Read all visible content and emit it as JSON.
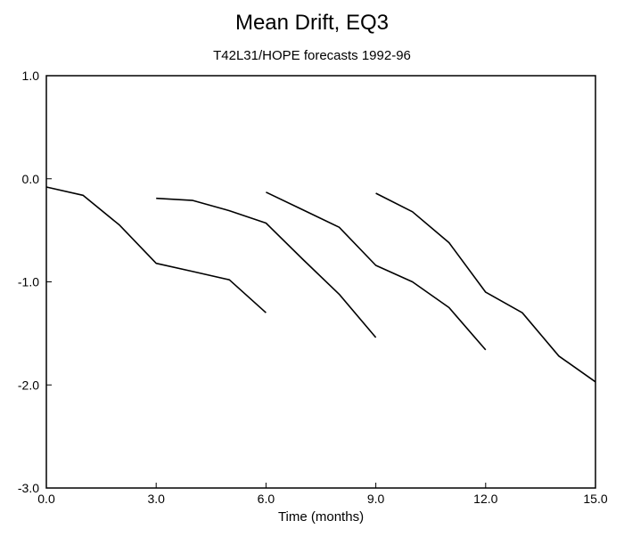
{
  "chart_data": {
    "type": "line",
    "title": "Mean Drift, EQ3",
    "subtitle": "T42L31/HOPE forecasts 1992-96",
    "xlabel": "Time (months)",
    "ylabel": "",
    "xlim": [
      0,
      15
    ],
    "ylim": [
      -3,
      1
    ],
    "xticks": [
      0,
      3,
      6,
      9,
      12,
      15
    ],
    "xtick_labels": [
      "0.0",
      "3.0",
      "6.0",
      "9.0",
      "12.0",
      "15.0"
    ],
    "yticks": [
      1,
      0,
      -1,
      -2,
      -3
    ],
    "ytick_labels": [
      "1.0",
      "0.0",
      "-1.0",
      "-2.0",
      "-3.0"
    ],
    "grid": false,
    "legend": false,
    "line_color": "#000000",
    "series": [
      {
        "x": [
          0,
          1,
          2,
          3,
          4,
          5,
          6
        ],
        "y": [
          -0.08,
          -0.16,
          -0.45,
          -0.82,
          -0.9,
          -0.98,
          -1.3
        ]
      },
      {
        "x": [
          3,
          4,
          5,
          6,
          7,
          8,
          9
        ],
        "y": [
          -0.19,
          -0.21,
          -0.31,
          -0.43,
          -0.78,
          -1.12,
          -1.54
        ]
      },
      {
        "x": [
          6,
          7,
          8,
          9,
          10,
          11,
          12
        ],
        "y": [
          -0.13,
          -0.3,
          -0.47,
          -0.84,
          -1.0,
          -1.25,
          -1.66
        ]
      },
      {
        "x": [
          9,
          10,
          11,
          12,
          13,
          14,
          15
        ],
        "y": [
          -0.14,
          -0.32,
          -0.62,
          -1.1,
          -1.3,
          -1.72,
          -1.97
        ]
      }
    ]
  }
}
